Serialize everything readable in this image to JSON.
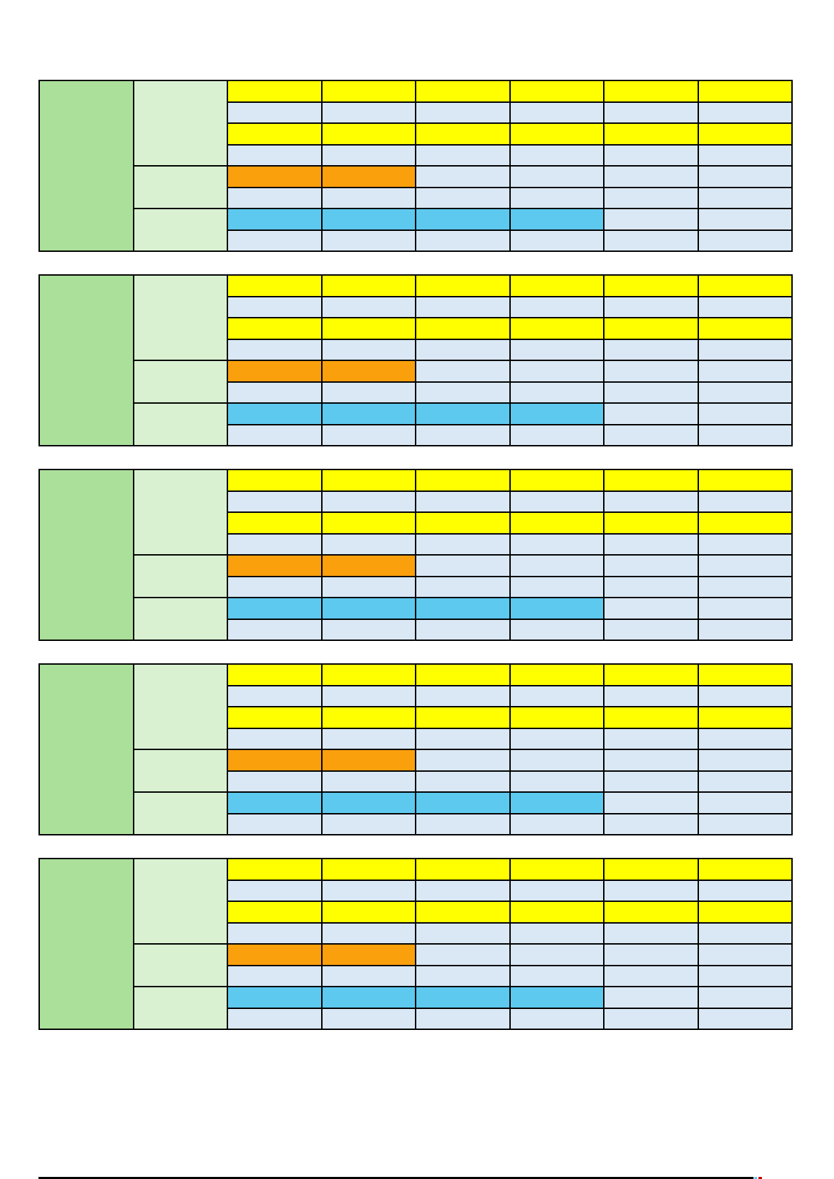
{
  "page": {
    "background": "#FFFFFF"
  },
  "colors": {
    "border": "#000000",
    "green": "#ABE09B",
    "light_green": "#D9F1D1",
    "yellow": "#FFFF00",
    "light_blue": "#DAE8F5",
    "orange": "#FBA00D",
    "cyan": "#5EC9EF",
    "red_fragment": "#C00000"
  },
  "table_template": {
    "data_columns": 6,
    "row_count": 8,
    "category_column": {
      "color": "green",
      "rowspan": 8,
      "label": ""
    },
    "subcategory_groups": [
      {
        "color": "light_green",
        "rowspan": 4,
        "label": ""
      },
      {
        "color": "light_green",
        "rowspan": 2,
        "label": ""
      },
      {
        "color": "light_green",
        "rowspan": 2,
        "label": ""
      }
    ],
    "rows": [
      [
        "yellow",
        "yellow",
        "yellow",
        "yellow",
        "yellow",
        "yellow"
      ],
      [
        "light_blue",
        "light_blue",
        "light_blue",
        "light_blue",
        "light_blue",
        "light_blue"
      ],
      [
        "yellow",
        "yellow",
        "yellow",
        "yellow",
        "yellow",
        "yellow"
      ],
      [
        "light_blue",
        "light_blue",
        "light_blue",
        "light_blue",
        "light_blue",
        "light_blue"
      ],
      [
        "orange",
        "orange",
        "light_blue",
        "light_blue",
        "light_blue",
        "light_blue"
      ],
      [
        "light_blue",
        "light_blue",
        "light_blue",
        "light_blue",
        "light_blue",
        "light_blue"
      ],
      [
        "cyan",
        "cyan",
        "cyan",
        "cyan",
        "light_blue",
        "light_blue"
      ],
      [
        "light_blue",
        "light_blue",
        "light_blue",
        "light_blue",
        "light_blue",
        "light_blue"
      ]
    ],
    "cell_text": ""
  },
  "blocks": [
    {
      "id": "block-1"
    },
    {
      "id": "block-2"
    },
    {
      "id": "block-3"
    },
    {
      "id": "block-4"
    },
    {
      "id": "block-5"
    }
  ],
  "bottom_fragment": {
    "line_color": "#000000",
    "cyan_color": "#5EC9EF",
    "red_color": "#C00000"
  }
}
